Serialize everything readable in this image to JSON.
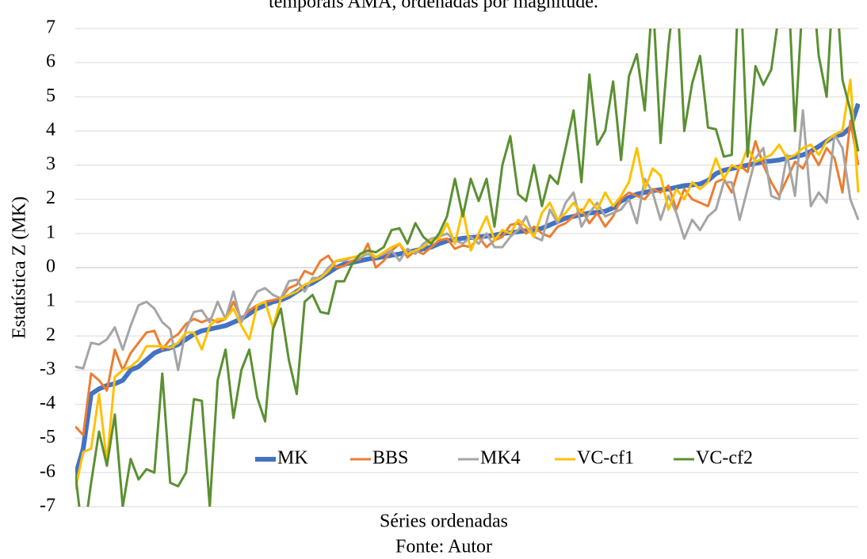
{
  "chart_data": {
    "type": "line",
    "title": "temporais AMA, ordenadas por magnitude.",
    "y_label": "Estatística Z (MK)",
    "x_label": "Séries ordenadas",
    "source": "Fonte: Autor",
    "ylim": [
      -7,
      7
    ],
    "yticks": [
      -7,
      -6,
      -5,
      -4,
      -3,
      {
        "value": -2,
        "label": "2"
      },
      {
        "value": -1,
        "label": "1"
      },
      0,
      1,
      2,
      3,
      4,
      5,
      6,
      7
    ],
    "grid": true,
    "legend": "bottom",
    "series": [
      {
        "name": "MK",
        "color": "#4472c4",
        "values": [
          -6.1,
          -5.3,
          -3.7,
          -3.55,
          -3.45,
          -3.4,
          -3.3,
          -3.0,
          -2.9,
          -2.7,
          -2.5,
          -2.4,
          -2.35,
          -2.25,
          -2.1,
          -1.95,
          -1.85,
          -1.8,
          -1.75,
          -1.7,
          -1.6,
          -1.5,
          -1.35,
          -1.2,
          -1.1,
          -1.0,
          -0.95,
          -0.85,
          -0.7,
          -0.55,
          -0.45,
          -0.3,
          -0.15,
          0.0,
          0.1,
          0.15,
          0.2,
          0.25,
          0.28,
          0.32,
          0.36,
          0.4,
          0.45,
          0.5,
          0.55,
          0.6,
          0.7,
          0.78,
          0.82,
          0.86,
          0.88,
          0.9,
          0.92,
          0.95,
          1.0,
          1.02,
          1.05,
          1.08,
          1.1,
          1.15,
          1.25,
          1.35,
          1.45,
          1.5,
          1.55,
          1.6,
          1.62,
          1.65,
          1.75,
          1.95,
          2.05,
          2.15,
          2.2,
          2.25,
          2.28,
          2.3,
          2.35,
          2.4,
          2.42,
          2.45,
          2.55,
          2.75,
          2.85,
          2.9,
          2.95,
          3.0,
          3.05,
          3.1,
          3.12,
          3.15,
          3.2,
          3.25,
          3.3,
          3.4,
          3.55,
          3.7,
          3.85,
          3.9,
          4.1,
          4.8
        ]
      },
      {
        "name": "BBS",
        "color": "#ed7d31",
        "values": [
          -4.65,
          -4.9,
          -3.1,
          -3.3,
          -3.6,
          -2.4,
          -3.0,
          -2.5,
          -2.2,
          -1.9,
          -1.85,
          -2.4,
          -2.1,
          -1.95,
          -1.65,
          -1.5,
          -1.6,
          -1.5,
          -1.6,
          -1.5,
          -1.0,
          -1.5,
          -1.25,
          -1.1,
          -1.0,
          -0.95,
          -0.9,
          -0.6,
          -0.5,
          -0.1,
          -0.2,
          0.2,
          0.35,
          0.0,
          0.05,
          0.2,
          0.25,
          0.7,
          0.0,
          0.2,
          0.5,
          0.7,
          0.3,
          0.5,
          0.4,
          0.6,
          0.8,
          0.85,
          0.55,
          0.65,
          0.6,
          0.9,
          0.6,
          0.8,
          0.9,
          1.25,
          1.3,
          1.0,
          1.2,
          1.0,
          0.9,
          1.2,
          1.3,
          1.5,
          1.7,
          1.3,
          1.6,
          1.2,
          1.5,
          2.0,
          2.2,
          2.1,
          2.0,
          2.3,
          2.2,
          2.4,
          1.7,
          2.3,
          2.0,
          1.9,
          1.8,
          2.5,
          2.6,
          2.2,
          3.0,
          2.8,
          3.7,
          3.0,
          2.5,
          2.1,
          2.6,
          3.1,
          2.9,
          3.4,
          3.0,
          3.5,
          3.2,
          2.2,
          4.3,
          3.0
        ]
      },
      {
        "name": "MK4",
        "color": "#a5a5a5",
        "values": [
          -2.9,
          -2.95,
          -2.2,
          -2.25,
          -2.1,
          -1.75,
          -2.4,
          -1.7,
          -1.1,
          -1.0,
          -1.2,
          -1.6,
          -1.8,
          -3.0,
          -1.8,
          -1.3,
          -1.25,
          -1.6,
          -1.0,
          -1.5,
          -0.7,
          -1.6,
          -1.1,
          -0.7,
          -0.6,
          -0.8,
          -0.9,
          -0.4,
          -0.35,
          -0.7,
          -0.3,
          -0.3,
          0.0,
          0.2,
          0.2,
          0.3,
          0.3,
          0.4,
          0.3,
          0.4,
          0.5,
          0.2,
          0.55,
          0.4,
          0.7,
          0.85,
          0.9,
          1.0,
          0.8,
          0.7,
          0.9,
          0.7,
          1.0,
          0.6,
          0.6,
          0.9,
          1.1,
          1.5,
          0.9,
          0.8,
          1.7,
          1.3,
          1.9,
          2.2,
          1.2,
          1.6,
          1.9,
          1.5,
          1.6,
          1.7,
          2.0,
          1.3,
          2.6,
          2.2,
          1.4,
          2.1,
          1.6,
          0.85,
          1.4,
          1.1,
          1.5,
          1.7,
          2.5,
          2.5,
          1.4,
          2.3,
          3.2,
          3.5,
          2.1,
          2.0,
          3.3,
          2.1,
          4.6,
          1.8,
          2.2,
          1.9,
          3.9,
          3.5,
          2.0,
          1.4
        ]
      },
      {
        "name": "VC-cf1",
        "color": "#ffc000",
        "values": [
          -6.5,
          -5.4,
          -5.3,
          -3.7,
          -5.7,
          -3.2,
          -3.0,
          -2.9,
          -2.7,
          -2.3,
          -2.3,
          -2.3,
          -2.35,
          -2.2,
          -1.9,
          -1.9,
          -2.4,
          -1.7,
          -1.5,
          -1.5,
          -1.2,
          -1.7,
          -2.1,
          -1.1,
          -1.0,
          -1.75,
          -0.9,
          -0.8,
          -0.7,
          -0.5,
          -0.4,
          -0.3,
          -0.1,
          0.2,
          0.25,
          0.3,
          0.35,
          0.5,
          0.3,
          0.45,
          0.6,
          0.7,
          0.4,
          0.5,
          0.6,
          0.8,
          0.85,
          1.3,
          0.7,
          1.7,
          0.5,
          1.0,
          1.5,
          0.8,
          1.1,
          1.0,
          1.4,
          1.2,
          0.9,
          1.6,
          1.9,
          1.4,
          1.6,
          1.9,
          1.6,
          2.0,
          1.7,
          2.2,
          1.8,
          2.1,
          2.5,
          3.5,
          2.3,
          2.9,
          2.7,
          1.7,
          2.3,
          2.0,
          2.5,
          2.3,
          2.5,
          3.2,
          2.6,
          3.0,
          2.9,
          3.5,
          3.1,
          3.2,
          3.3,
          3.6,
          3.2,
          3.3,
          3.5,
          3.6,
          3.3,
          3.7,
          3.9,
          4.0,
          5.5,
          2.2
        ]
      },
      {
        "name": "VC-cf2",
        "color": "#5b9032",
        "values": [
          -6.0,
          -8.0,
          -6.3,
          -4.8,
          -5.8,
          -4.3,
          -7.0,
          -5.6,
          -6.2,
          -5.9,
          -6.0,
          -3.1,
          -6.3,
          -6.4,
          -6.0,
          -3.85,
          -3.9,
          -7.0,
          -3.3,
          -2.4,
          -4.4,
          -3.0,
          -2.4,
          -3.8,
          -4.5,
          -1.8,
          -1.2,
          -2.7,
          -3.7,
          -1.0,
          -0.8,
          -1.3,
          -1.35,
          -0.4,
          -0.4,
          0.1,
          0.4,
          0.5,
          0.45,
          0.6,
          1.1,
          1.15,
          0.7,
          1.3,
          0.9,
          0.7,
          1.0,
          1.5,
          2.6,
          1.5,
          2.6,
          1.95,
          2.6,
          1.2,
          3.0,
          3.85,
          2.15,
          1.95,
          3.0,
          1.8,
          2.7,
          2.45,
          3.5,
          4.6,
          2.5,
          5.65,
          3.6,
          4.0,
          5.45,
          3.15,
          5.6,
          6.25,
          4.6,
          8.0,
          3.65,
          6.5,
          8.5,
          4.0,
          5.4,
          6.2,
          4.1,
          4.05,
          3.25,
          3.3,
          9.0,
          3.25,
          5.9,
          5.35,
          5.8,
          7.5,
          9.0,
          4.0,
          8.0,
          9.0,
          6.2,
          5.0,
          9.0,
          5.5,
          4.6,
          3.4
        ]
      }
    ]
  }
}
